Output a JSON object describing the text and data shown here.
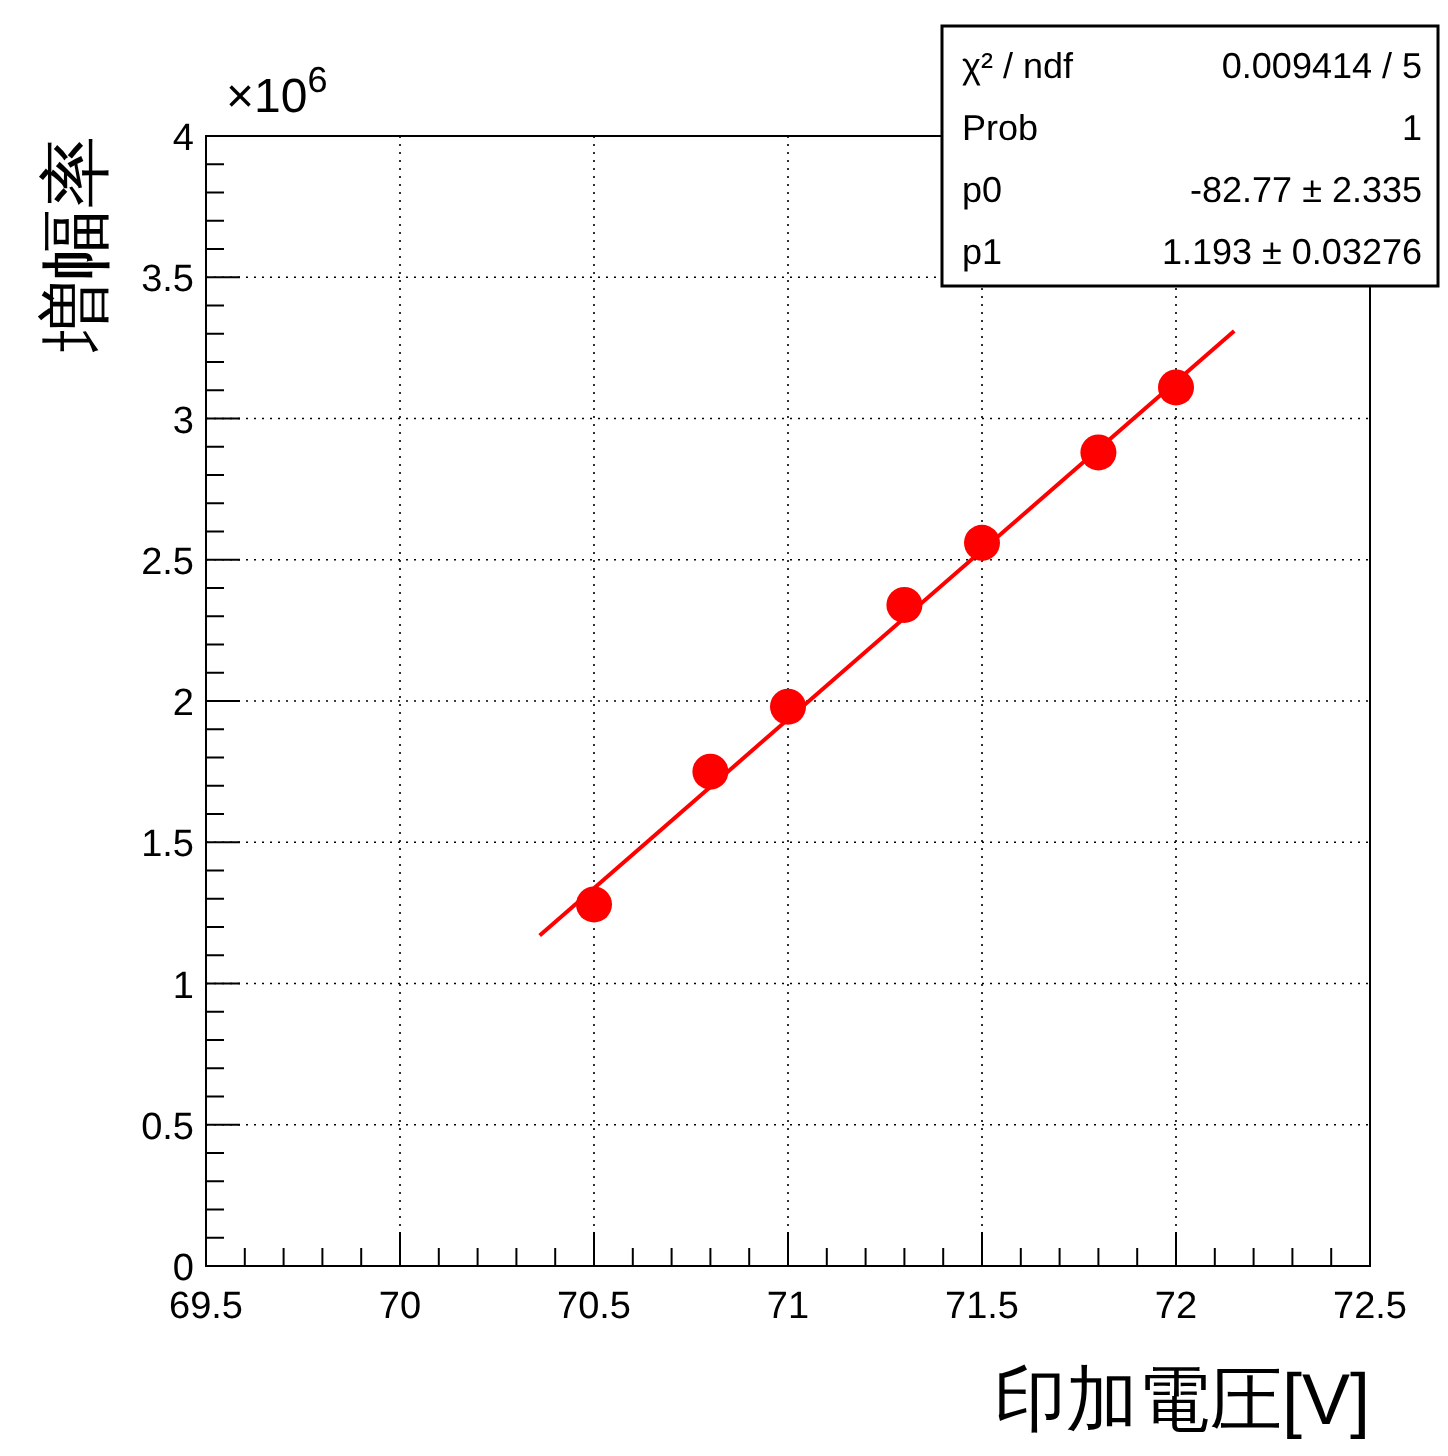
{
  "chart_data": {
    "type": "scatter",
    "xlabel": "印加電圧[V]",
    "ylabel": "増幅率",
    "xlim": [
      69.5,
      72.5
    ],
    "xticks": [
      69.5,
      70,
      70.5,
      71,
      71.5,
      72,
      72.5
    ],
    "ylim": [
      0,
      4
    ],
    "yticks": [
      0,
      0.5,
      1,
      1.5,
      2,
      2.5,
      3,
      3.5,
      4
    ],
    "grid": true,
    "series": [
      {
        "color": "#ff0000",
        "marker": "circle",
        "x": [
          70.5,
          70.8,
          71.0,
          71.3,
          71.5,
          71.8,
          72.0
        ],
        "values": [
          1.28,
          1.75,
          1.98,
          2.34,
          2.56,
          2.88,
          3.11
        ]
      },
      {
        "type": "line",
        "color": "#ff0000",
        "x": [
          70.36,
          72.15
        ],
        "values": [
          1.17,
          3.31
        ]
      }
    ],
    "annotations": [
      "×10$^{6}$",
      "χ² / ndf",
      "0.009414 / 5",
      "Prob",
      "1",
      "p0",
      "-82.77 ± 2.335",
      "p1",
      "1.193 ± 0.03276"
    ]
  }
}
